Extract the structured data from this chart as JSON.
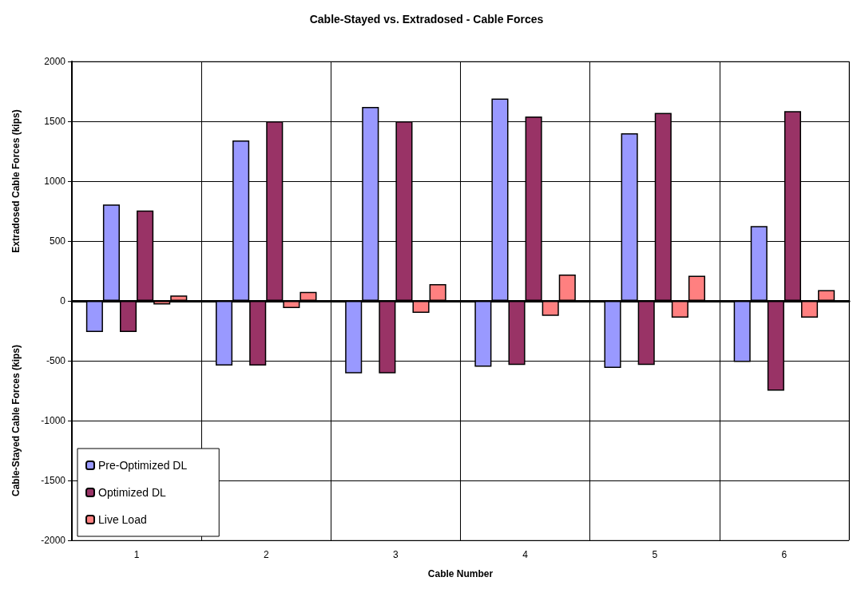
{
  "chart_data": {
    "type": "bar",
    "title": "Cable-Stayed vs. Extradosed - Cable Forces",
    "xlabel": "Cable Number",
    "ylabel": "Extradosed Cable Forces (kips)",
    "annotations": [
      "Cable-Stayed Cable Forces (kips)"
    ],
    "categories": [
      "1",
      "2",
      "3",
      "4",
      "5",
      "6"
    ],
    "series": [
      {
        "name": "Pre-Optimized DL",
        "color": "#9999ff",
        "values": [
          -260,
          -540,
          -605,
          -550,
          -560,
          -510
        ]
      },
      {
        "color": "#9999ff",
        "values": [
          805,
          1340,
          1620,
          1690,
          1400,
          625
        ]
      },
      {
        "name": "Optimized DL",
        "color": "#993366",
        "values": [
          -260,
          -540,
          -605,
          -535,
          -535,
          -750
        ]
      },
      {
        "color": "#993366",
        "values": [
          755,
          1500,
          1500,
          1540,
          1570,
          1585
        ]
      },
      {
        "name": "Live Load",
        "color": "#ff8080",
        "values": [
          -30,
          -60,
          -100,
          -125,
          -140,
          -140
        ]
      },
      {
        "color": "#ff8080",
        "values": [
          45,
          75,
          140,
          220,
          210,
          90
        ]
      }
    ],
    "ylim": [
      -2000,
      2000
    ],
    "yticks": [
      -2000,
      -1500,
      -1000,
      -500,
      0,
      500,
      1000,
      1500,
      2000
    ],
    "grid": true,
    "legend": "bottom left"
  }
}
